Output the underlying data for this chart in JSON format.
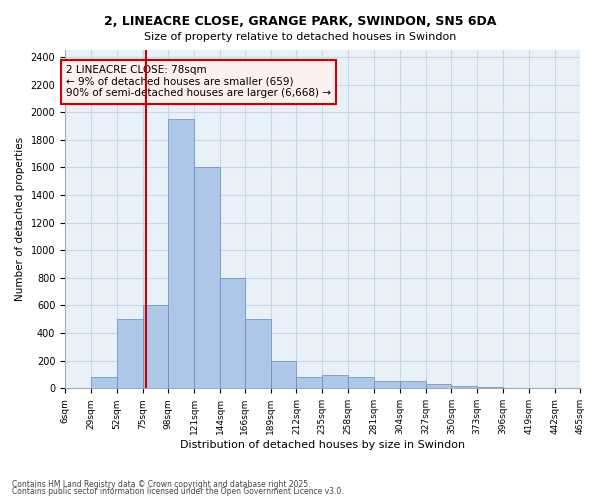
{
  "title1": "2, LINEACRE CLOSE, GRANGE PARK, SWINDON, SN5 6DA",
  "title2": "Size of property relative to detached houses in Swindon",
  "xlabel": "Distribution of detached houses by size in Swindon",
  "ylabel": "Number of detached properties",
  "footer1": "Contains HM Land Registry data © Crown copyright and database right 2025.",
  "footer2": "Contains public sector information licensed under the Open Government Licence v3.0.",
  "bar_color": "#aec6e8",
  "bar_edge_color": "#5a8fc2",
  "grid_color": "#c8d8e8",
  "background_color": "#e8f0f8",
  "vline_x": 78,
  "vline_color": "#cc0000",
  "annotation_text": "2 LINEACRE CLOSE: 78sqm\n← 9% of detached houses are smaller (659)\n90% of semi-detached houses are larger (6,668) →",
  "annotation_box_color": "#fff0f0",
  "annotation_box_edge": "#cc0000",
  "bin_edges": [
    6,
    29,
    52,
    75,
    98,
    121,
    144,
    166,
    189,
    212,
    235,
    258,
    281,
    304,
    327,
    350,
    373,
    396,
    419,
    442,
    465
  ],
  "bar_heights": [
    0,
    80,
    500,
    600,
    1950,
    1600,
    800,
    500,
    200,
    80,
    100,
    80,
    50,
    50,
    30,
    20,
    10,
    0,
    5,
    0
  ],
  "ylim": [
    0,
    2450
  ],
  "yticks": [
    0,
    200,
    400,
    600,
    800,
    1000,
    1200,
    1400,
    1600,
    1800,
    2000,
    2200,
    2400
  ]
}
